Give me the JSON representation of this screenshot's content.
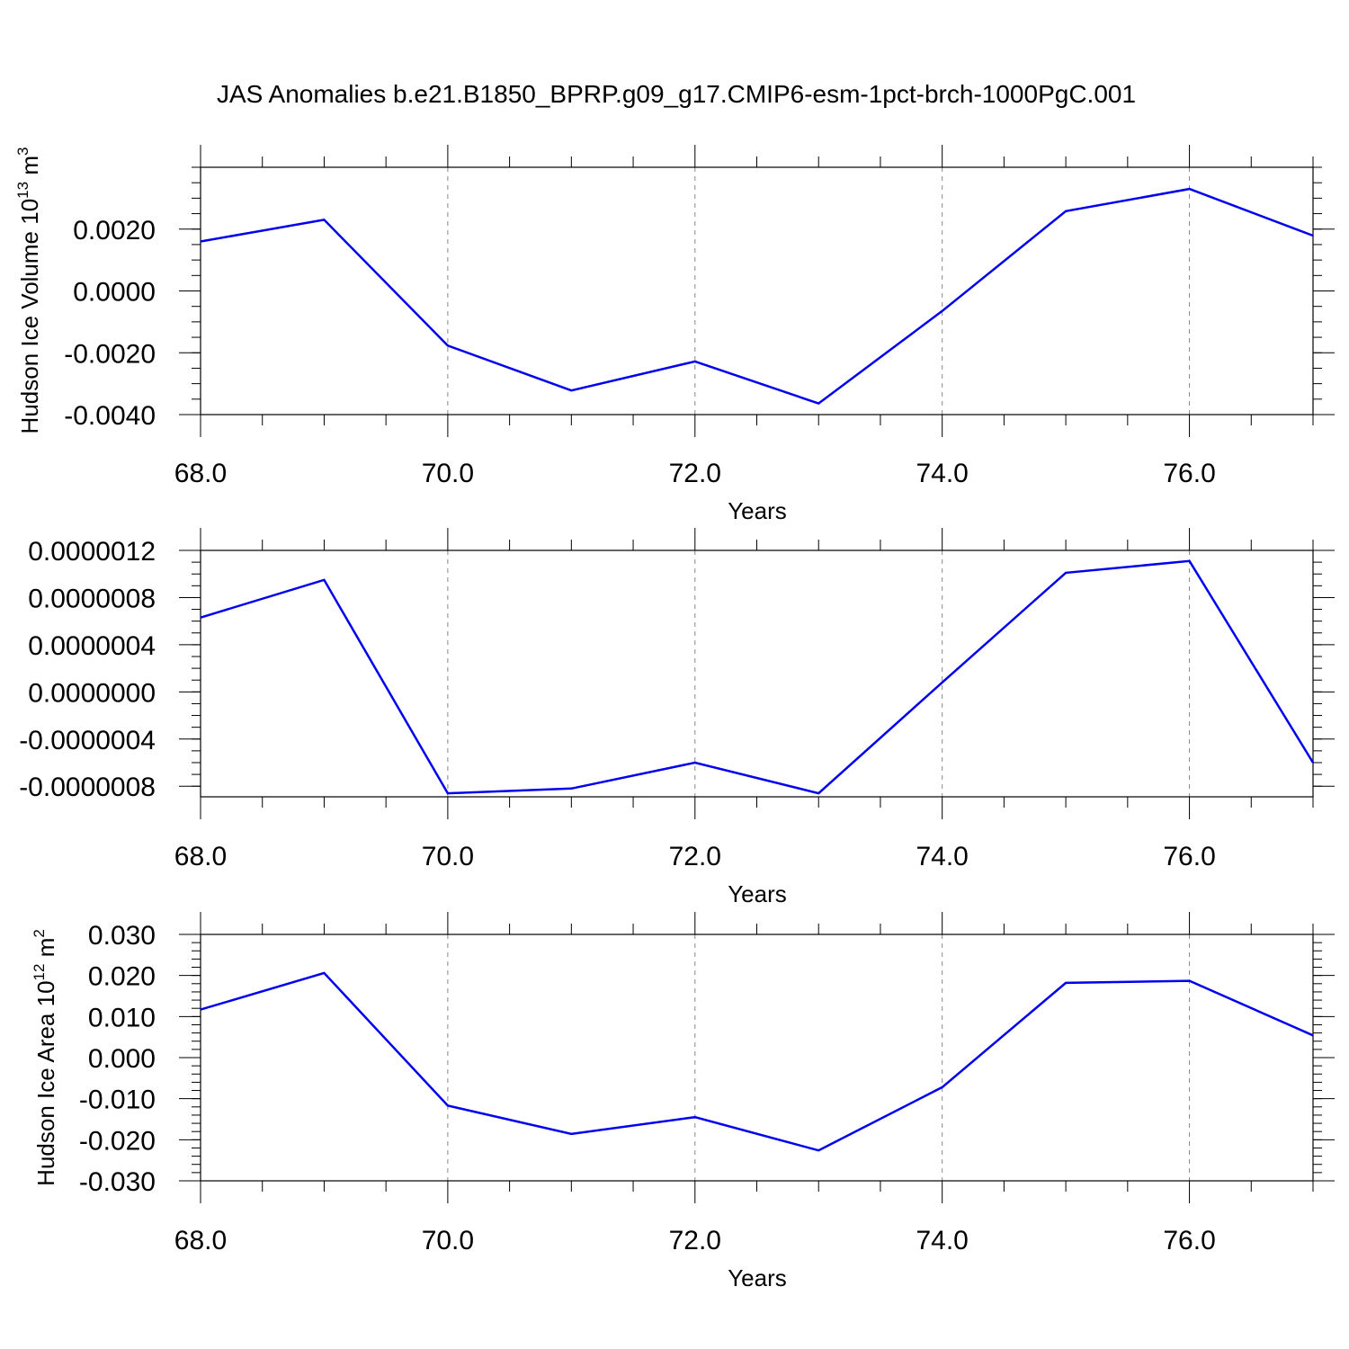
{
  "chart_data": {
    "type": "line",
    "title": "JAS Anomalies b.e21.B1850_BPRP.g09_g17.CMIP6-esm-1pct-brch-1000PgC.001",
    "line_color": "#0000ee",
    "grid": "vertical dashed at major x ticks",
    "panels": [
      {
        "id": "volume",
        "ylabel": "Hudson Ice Volume 10",
        "ylabel_sup": "13",
        "ylabel_unit": " m",
        "ylabel_unit_sup": "3",
        "xlabel": "Years",
        "xlim": [
          68,
          77
        ],
        "ylim": [
          -0.004,
          0.004
        ],
        "x_ticks": [
          "68.0",
          "70.0",
          "72.0",
          "74.0",
          "76.0"
        ],
        "x_tick_values": [
          68,
          70,
          72,
          74,
          76
        ],
        "y_ticks": [
          "0.0020",
          "0.0000",
          "-0.0020",
          "-0.0040"
        ],
        "y_tick_values": [
          0.002,
          0,
          -0.002,
          -0.004
        ],
        "y_minor_step": 0.0005,
        "x": [
          68,
          69,
          70,
          71,
          72,
          73,
          74,
          75,
          76,
          77
        ],
        "values": [
          0.0016,
          0.0023,
          -0.00177,
          -0.00322,
          -0.00228,
          -0.00364,
          -0.00065,
          0.00258,
          0.0033,
          0.00179
        ]
      },
      {
        "id": "thickness",
        "ylabel": "",
        "xlabel": "Years",
        "xlim": [
          68,
          77
        ],
        "ylim": [
          -8.9e-07,
          1.2e-06
        ],
        "x_ticks": [
          "68.0",
          "70.0",
          "72.0",
          "74.0",
          "76.0"
        ],
        "x_tick_values": [
          68,
          70,
          72,
          74,
          76
        ],
        "y_ticks": [
          "0.0000012",
          "0.0000008",
          "0.0000004",
          "0.0000000",
          "-0.0000004",
          "-0.0000008"
        ],
        "y_tick_values": [
          1.2e-06,
          8e-07,
          4e-07,
          0,
          -4e-07,
          -8e-07
        ],
        "y_minor_step": 1e-07,
        "x": [
          68,
          69,
          70,
          71,
          72,
          73,
          74,
          75,
          76,
          77
        ],
        "values": [
          6.3e-07,
          9.5e-07,
          -8.6e-07,
          -8.2e-07,
          -6e-07,
          -8.6e-07,
          8e-08,
          1.01e-06,
          1.11e-06,
          -6e-07
        ]
      },
      {
        "id": "area",
        "ylabel": "Hudson Ice Area 10",
        "ylabel_sup": "12",
        "ylabel_unit": " m",
        "ylabel_unit_sup": "2",
        "xlabel": "Years",
        "xlim": [
          68,
          77
        ],
        "ylim": [
          -0.03,
          0.03
        ],
        "x_ticks": [
          "68.0",
          "70.0",
          "72.0",
          "74.0",
          "76.0"
        ],
        "x_tick_values": [
          68,
          70,
          72,
          74,
          76
        ],
        "y_ticks": [
          "0.030",
          "0.020",
          "0.010",
          "0.000",
          "-0.010",
          "-0.020",
          "-0.030"
        ],
        "y_tick_values": [
          0.03,
          0.02,
          0.01,
          0,
          -0.01,
          -0.02,
          -0.03
        ],
        "y_minor_step": 0.002,
        "x": [
          68,
          69,
          70,
          71,
          72,
          73,
          74,
          75,
          76,
          77
        ],
        "values": [
          0.0117,
          0.0206,
          -0.0117,
          -0.0186,
          -0.0145,
          -0.0226,
          -0.0072,
          0.0182,
          0.0187,
          0.0054
        ]
      }
    ]
  }
}
